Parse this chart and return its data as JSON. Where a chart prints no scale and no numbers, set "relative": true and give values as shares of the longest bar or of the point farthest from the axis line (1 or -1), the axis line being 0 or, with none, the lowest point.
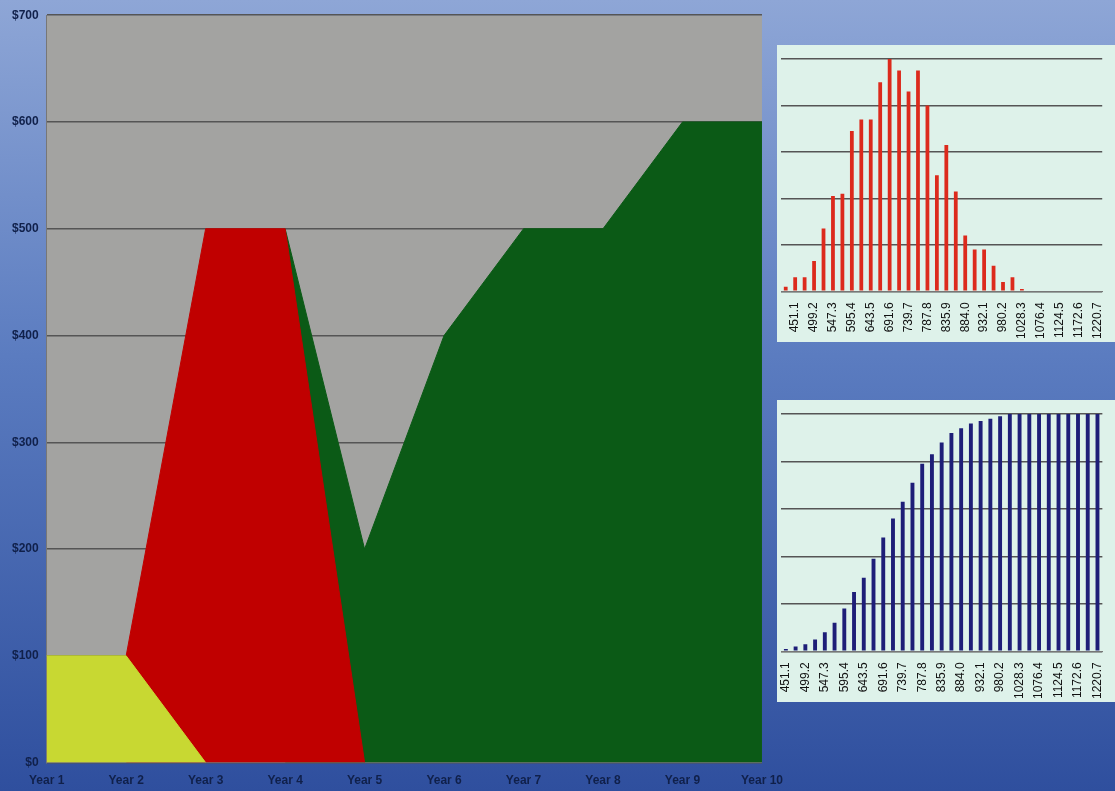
{
  "chart_data": [
    {
      "type": "area",
      "categories": [
        "Year 1",
        "Year 2",
        "Year 3",
        "Year 4",
        "Year 5",
        "Year 6",
        "Year 7",
        "Year 8",
        "Year 9",
        "Year 10"
      ],
      "series": [
        {
          "color": "#c8d832",
          "values": [
            100,
            100,
            0,
            null,
            null,
            null,
            null,
            null,
            null,
            null
          ]
        },
        {
          "color": "#c00000",
          "values": [
            null,
            100,
            500,
            500,
            0,
            null,
            null,
            null,
            null,
            null
          ]
        },
        {
          "color": "#0b5a16",
          "values": [
            null,
            null,
            null,
            500,
            200,
            400,
            500,
            500,
            600,
            600
          ]
        }
      ],
      "ylim": [
        0,
        700
      ],
      "yticks": [
        {
          "value": 0,
          "label": "$0"
        },
        {
          "value": 100,
          "label": "$100"
        },
        {
          "value": 200,
          "label": "$200"
        },
        {
          "value": 300,
          "label": "$300"
        },
        {
          "value": 400,
          "label": "$400"
        },
        {
          "value": 500,
          "label": "$500"
        },
        {
          "value": 600,
          "label": "$600"
        },
        {
          "value": 700,
          "label": "$700"
        }
      ],
      "grid": "y",
      "marker": "none"
    },
    {
      "type": "bar",
      "relative": true,
      "tick_labels": "x",
      "grid": "y",
      "color": "#dc2a1c",
      "categories": [
        null,
        "451.1",
        null,
        "499.2",
        null,
        "547.3",
        null,
        "595.4",
        null,
        "643.5",
        null,
        "691.6",
        null,
        "739.7",
        null,
        "787.8",
        null,
        "835.9",
        null,
        "884.0",
        null,
        "932.1",
        null,
        "980.2",
        null,
        "1028.3",
        null,
        "1076.4",
        null,
        "1124.5",
        null,
        "1172.6",
        null,
        "1220.7"
      ],
      "values": [
        0.02,
        0.06,
        0.06,
        0.13,
        0.27,
        0.41,
        0.42,
        0.69,
        0.74,
        0.74,
        0.9,
        1,
        0.95,
        0.86,
        0.95,
        0.8,
        0.5,
        0.63,
        0.43,
        0.24,
        0.18,
        0.18,
        0.11,
        0.04,
        0.06,
        0.01,
        0,
        0,
        0,
        0,
        0,
        0,
        0,
        0
      ]
    },
    {
      "type": "bar",
      "relative": true,
      "tick_labels": "x",
      "grid": "y",
      "color": "#1e1e78",
      "categories": [
        "451.1",
        null,
        "499.2",
        null,
        "547.3",
        null,
        "595.4",
        null,
        "643.5",
        null,
        "691.6",
        null,
        "739.7",
        null,
        "787.8",
        null,
        "835.9",
        null,
        "884.0",
        null,
        "932.1",
        null,
        "980.2",
        null,
        "1028.3",
        null,
        "1076.4",
        null,
        "1124.5",
        null,
        "1172.6",
        null,
        "1220.7"
      ],
      "values": [
        0.01,
        0.02,
        0.03,
        0.05,
        0.08,
        0.12,
        0.18,
        0.25,
        0.31,
        0.39,
        0.48,
        0.56,
        0.63,
        0.71,
        0.79,
        0.83,
        0.88,
        0.92,
        0.94,
        0.96,
        0.97,
        0.98,
        0.99,
        1,
        1,
        1,
        1,
        1,
        1,
        1,
        1,
        1,
        1
      ]
    }
  ]
}
